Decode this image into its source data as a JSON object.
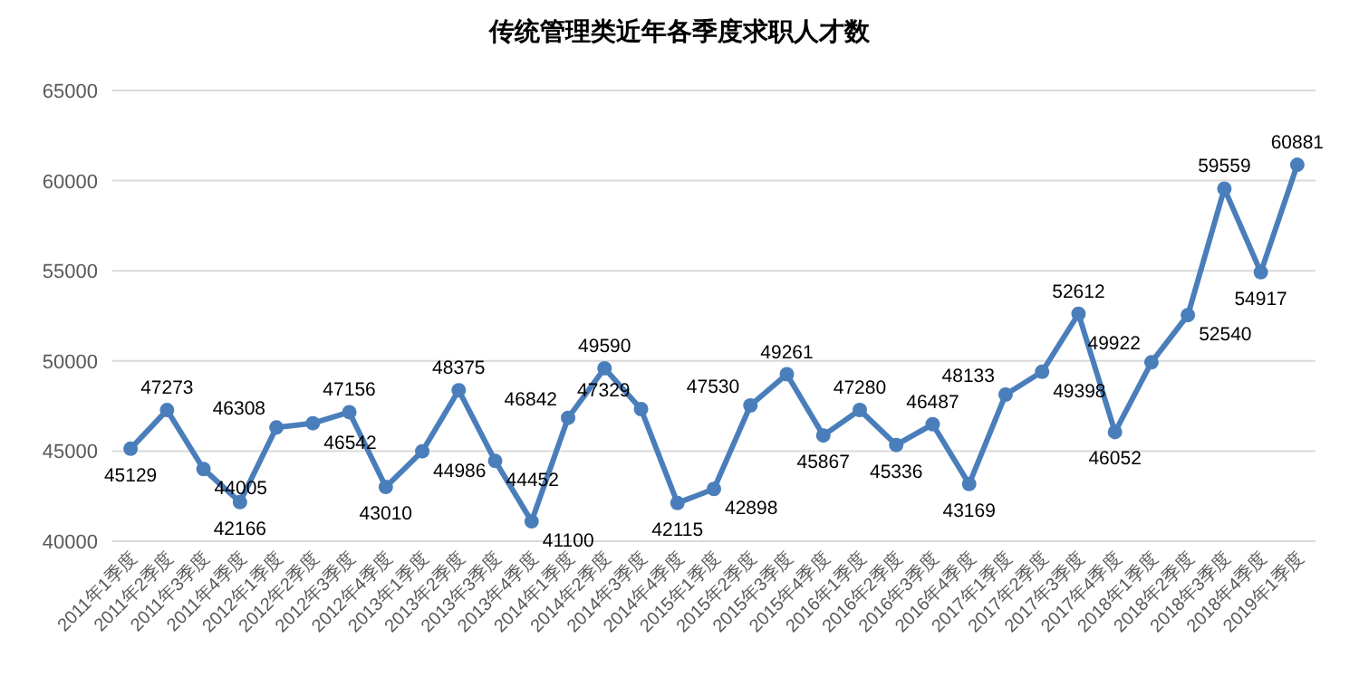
{
  "chart_data": {
    "type": "line",
    "title": "传统管理类近年各季度求职人才数",
    "categories": [
      "2011年1季度",
      "2011年2季度",
      "2011年3季度",
      "2011年4季度",
      "2012年1季度",
      "2012年2季度",
      "2012年3季度",
      "2012年4季度",
      "2013年1季度",
      "2013年2季度",
      "2013年3季度",
      "2013年4季度",
      "2014年1季度",
      "2014年2季度",
      "2014年3季度",
      "2014年4季度",
      "2015年1季度",
      "2015年2季度",
      "2015年3季度",
      "2015年4季度",
      "2016年1季度",
      "2016年2季度",
      "2016年3季度",
      "2016年4季度",
      "2017年1季度",
      "2017年2季度",
      "2017年3季度",
      "2017年4季度",
      "2018年1季度",
      "2018年2季度",
      "2018年3季度",
      "2018年4季度",
      "2019年1季度"
    ],
    "values": [
      45129,
      47273,
      44005,
      42166,
      46308,
      46542,
      47156,
      43010,
      44986,
      48375,
      44452,
      41100,
      46842,
      49590,
      47329,
      42115,
      42898,
      47530,
      49261,
      45867,
      47280,
      45336,
      46487,
      43169,
      48133,
      49398,
      52612,
      46052,
      49922,
      52540,
      59559,
      54917,
      60881
    ],
    "color": "#4a7ebb",
    "ylim": [
      40000,
      65000
    ],
    "yticks": [
      40000,
      45000,
      50000,
      55000,
      60000,
      65000
    ],
    "grid": "y",
    "data_labels": true,
    "marker": "circle",
    "line_style": "solid"
  }
}
